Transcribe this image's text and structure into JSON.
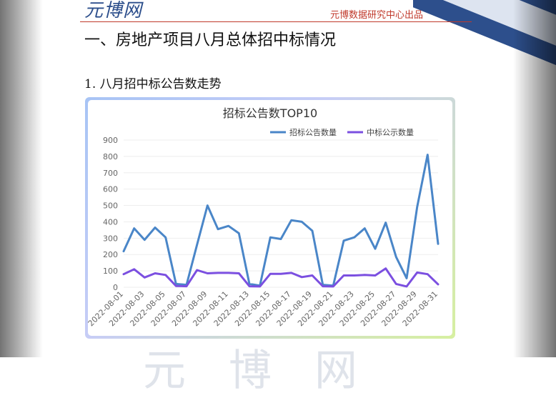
{
  "header": {
    "logo_text": "元博网",
    "note": "元博数据研究中心出品"
  },
  "section_title": "一、房地产项目八月总体招中标情况",
  "sub_title": "1. 八月招中标公告数走势",
  "watermark": "元博网",
  "colors": {
    "tender": "#4a86c8",
    "award": "#7b4fe0",
    "axis_text": "#666666",
    "grid": "#eeeeee"
  },
  "chart_data": {
    "type": "line",
    "title": "招标公告数TOP10",
    "xlabel": "",
    "ylabel": "",
    "ylim": [
      0,
      900
    ],
    "yticks": [
      0,
      100,
      200,
      300,
      400,
      500,
      600,
      700,
      800,
      900
    ],
    "legend_position": "top-right",
    "x": [
      "2022-08-01",
      "2022-08-02",
      "2022-08-03",
      "2022-08-04",
      "2022-08-05",
      "2022-08-06",
      "2022-08-07",
      "2022-08-08",
      "2022-08-09",
      "2022-08-10",
      "2022-08-11",
      "2022-08-12",
      "2022-08-13",
      "2022-08-14",
      "2022-08-15",
      "2022-08-16",
      "2022-08-17",
      "2022-08-18",
      "2022-08-19",
      "2022-08-20",
      "2022-08-21",
      "2022-08-22",
      "2022-08-23",
      "2022-08-24",
      "2022-08-25",
      "2022-08-26",
      "2022-08-27",
      "2022-08-28",
      "2022-08-29",
      "2022-08-30",
      "2022-08-31"
    ],
    "x_tick_labels": [
      "2022-08-01",
      "2022-08-03",
      "2022-08-05",
      "2022-08-07",
      "2022-08-09",
      "2022-08-11",
      "2022-08-13",
      "2022-08-15",
      "2022-08-17",
      "2022-08-19",
      "2022-08-21",
      "2022-08-23",
      "2022-08-25",
      "2022-08-27",
      "2022-08-29",
      "2022-08-31"
    ],
    "series": [
      {
        "name": "招标公告数量",
        "values": [
          220,
          360,
          290,
          365,
          305,
          20,
          15,
          260,
          500,
          355,
          375,
          330,
          20,
          10,
          305,
          295,
          410,
          400,
          345,
          15,
          10,
          285,
          305,
          360,
          235,
          395,
          185,
          55,
          490,
          810,
          265
        ]
      },
      {
        "name": "中标公示数量",
        "values": [
          80,
          110,
          60,
          85,
          75,
          8,
          6,
          105,
          85,
          88,
          88,
          85,
          6,
          5,
          82,
          82,
          88,
          62,
          72,
          6,
          5,
          72,
          72,
          75,
          72,
          115,
          20,
          5,
          90,
          80,
          18
        ]
      }
    ]
  }
}
